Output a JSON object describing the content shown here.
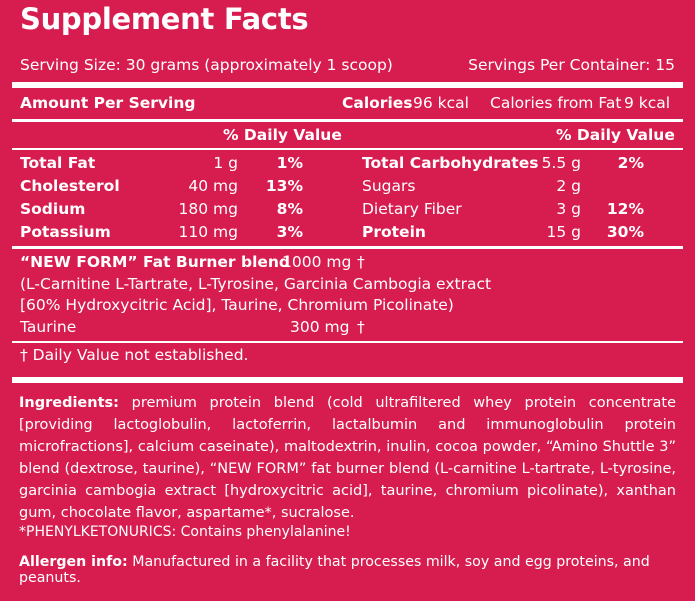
{
  "title": "Supplement Facts",
  "serving_size": "Serving Size: 30 grams (approximately 1 scoop)",
  "servings_per_container": "Servings Per Container: 15",
  "amount_per_serving": "Amount Per Serving",
  "calories_label": "Calories",
  "calories_value": "96 kcal",
  "calories_fat_label": "Calories from Fat",
  "calories_fat_value": "9 kcal",
  "daily_value_header": "% Daily Value",
  "left_nutrients": [
    {
      "name": "Total Fat",
      "amount": "1 g",
      "dv": "1%"
    },
    {
      "name": "Cholesterol",
      "amount": "40 mg",
      "dv": "13%"
    },
    {
      "name": "Sodium",
      "amount": "180 mg",
      "dv": "8%"
    },
    {
      "name": "Potassium",
      "amount": "110 mg",
      "dv": "3%"
    }
  ],
  "right_nutrients": [
    {
      "name": "Total Carbohydrates",
      "amount": "5.5 g",
      "dv": "2%"
    },
    {
      "name": "Sugars",
      "amount": "2 g",
      "dv": ""
    },
    {
      "name": "Dietary Fiber",
      "amount": "3 g",
      "dv": "12%"
    },
    {
      "name": "Protein",
      "amount": "15 g",
      "dv": "30%"
    }
  ],
  "blend": {
    "name": "“NEW FORM” Fat Burner blend",
    "amount": "1000 mg",
    "mark": "†",
    "line1": "(L-Carnitine L-Tartrate, L-Tyrosine, Garcinia Cambogia extract",
    "line2": "[60% Hydroxycitric Acid], Taurine, Chromium Picolinate)"
  },
  "taurine": {
    "name": "Taurine",
    "amount": "300 mg",
    "mark": "†"
  },
  "dv_footnote": "† Daily Value not established.",
  "ingredients_label": "Ingredients:",
  "ingredients_text": "premium protein blend (cold ultrafiltered whey protein concentrate [providing lactoglobulin, lactoferrin, lactalbumin and immunoglobulin protein microfractions], calcium caseinate), maltodextrin, inulin, cocoa powder, “Amino Shuttle 3” blend (dextrose, taurine), “NEW FORM” fat burner blend (L-carnitine L-tartrate, L-tyrosine, garcinia cambogia extract [hydroxycitric acid], taurine, chromium picolinate), xanthan gum, chocolate flavor, aspartame*, sucralose.",
  "pku_note": "*PHENYLKETONURICS: Contains phenylalanine!",
  "allergen_label": "Allergen info:",
  "allergen_text": "Manufactured in a facility that processes milk, soy and egg proteins, and peanuts.",
  "colors": {
    "background": "#d71d4f",
    "text": "#ffffff"
  }
}
